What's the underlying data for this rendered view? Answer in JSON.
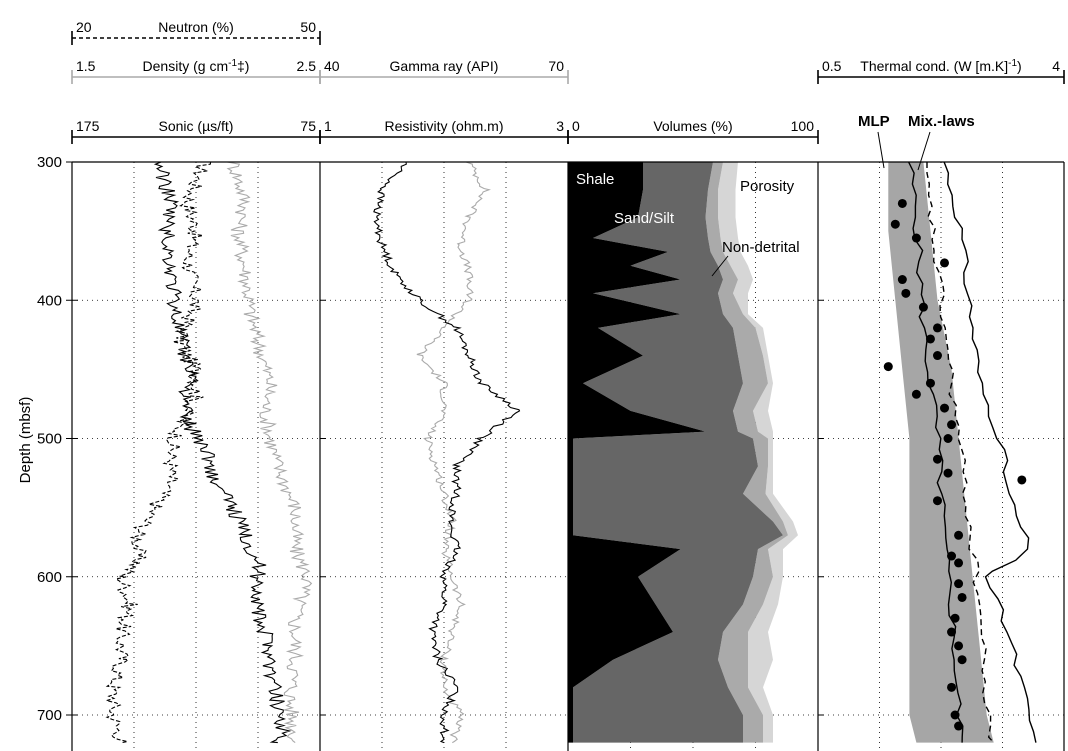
{
  "chart_data": {
    "type": "line",
    "ylabel": "Depth (mbsf)",
    "yrange": [
      300,
      720
    ],
    "yticks": [
      300,
      400,
      500,
      600,
      700
    ],
    "tracks": [
      {
        "id": "t1",
        "scales": [
          {
            "label": "Neutron (%)",
            "min_label": "20",
            "max_label": "50",
            "style": "dashed",
            "color": "#000000"
          },
          {
            "label_pre": "Density (g cm",
            "label_sup": "-1",
            "label_post": "‡)",
            "min_label": "1.5",
            "max_label": "2.5",
            "style": "solid",
            "color": "#aaaaaa"
          },
          {
            "label": "Sonic (µs/ft)",
            "min_label": "175",
            "max_label": "75",
            "style": "solid",
            "color": "#000000"
          }
        ],
        "series": [
          {
            "curve": "neutron",
            "style": "dashed",
            "color": "#000000",
            "points": [
              [
                300,
                36
              ],
              [
                330,
                34
              ],
              [
                350,
                35
              ],
              [
                370,
                34
              ],
              [
                400,
                35
              ],
              [
                430,
                33
              ],
              [
                450,
                35
              ],
              [
                470,
                35
              ],
              [
                490,
                33
              ],
              [
                510,
                32
              ],
              [
                530,
                32
              ],
              [
                550,
                30
              ],
              [
                570,
                28
              ],
              [
                590,
                28
              ],
              [
                600,
                26
              ],
              [
                620,
                27
              ],
              [
                640,
                26
              ],
              [
                660,
                26
              ],
              [
                680,
                25
              ],
              [
                700,
                25
              ],
              [
                720,
                26
              ]
            ]
          },
          {
            "curve": "density",
            "style": "solid",
            "color": "#aaaaaa",
            "points": [
              [
                300,
                2.15
              ],
              [
                330,
                2.2
              ],
              [
                350,
                2.17
              ],
              [
                380,
                2.2
              ],
              [
                410,
                2.22
              ],
              [
                430,
                2.25
              ],
              [
                460,
                2.3
              ],
              [
                480,
                2.28
              ],
              [
                500,
                2.3
              ],
              [
                520,
                2.33
              ],
              [
                550,
                2.4
              ],
              [
                580,
                2.4
              ],
              [
                600,
                2.45
              ],
              [
                630,
                2.4
              ],
              [
                660,
                2.4
              ],
              [
                690,
                2.38
              ],
              [
                720,
                2.4
              ]
            ]
          },
          {
            "curve": "sonic",
            "style": "solid",
            "color": "#000000",
            "points": [
              [
                300,
                140
              ],
              [
                330,
                135
              ],
              [
                350,
                137
              ],
              [
                380,
                135
              ],
              [
                410,
                133
              ],
              [
                440,
                130
              ],
              [
                455,
                125
              ],
              [
                470,
                130
              ],
              [
                490,
                128
              ],
              [
                510,
                120
              ],
              [
                530,
                118
              ],
              [
                550,
                110
              ],
              [
                570,
                105
              ],
              [
                590,
                100
              ],
              [
                610,
                100
              ],
              [
                630,
                100
              ],
              [
                650,
                95
              ],
              [
                670,
                95
              ],
              [
                690,
                92
              ],
              [
                710,
                90
              ],
              [
                720,
                92
              ]
            ]
          }
        ]
      },
      {
        "id": "t2",
        "scales": [
          {
            "label": "Gamma ray (API)",
            "min_label": "40",
            "max_label": "70",
            "style": "solid",
            "color": "#aaaaaa"
          },
          {
            "label": "Resistivity (ohm.m)",
            "min_label": "1",
            "max_label": "3",
            "style": "solid",
            "color": "#000000"
          }
        ],
        "series": [
          {
            "curve": "gamma",
            "style": "solid",
            "color": "#aaaaaa",
            "points": [
              [
                300,
                58
              ],
              [
                320,
                60
              ],
              [
                340,
                58
              ],
              [
                360,
                57
              ],
              [
                380,
                58
              ],
              [
                400,
                58
              ],
              [
                420,
                55
              ],
              [
                440,
                52
              ],
              [
                460,
                55
              ],
              [
                480,
                55
              ],
              [
                500,
                53
              ],
              [
                520,
                54
              ],
              [
                540,
                55
              ],
              [
                560,
                56
              ],
              [
                580,
                55
              ],
              [
                600,
                56
              ],
              [
                620,
                57
              ],
              [
                640,
                56
              ],
              [
                660,
                55
              ],
              [
                680,
                55
              ],
              [
                700,
                57
              ],
              [
                720,
                56
              ]
            ]
          },
          {
            "curve": "resistivity",
            "style": "solid",
            "color": "#000000",
            "points": [
              [
                300,
                1.7
              ],
              [
                320,
                1.5
              ],
              [
                340,
                1.45
              ],
              [
                360,
                1.5
              ],
              [
                380,
                1.6
              ],
              [
                400,
                1.8
              ],
              [
                420,
                2.1
              ],
              [
                440,
                2.2
              ],
              [
                460,
                2.3
              ],
              [
                480,
                2.6
              ],
              [
                500,
                2.3
              ],
              [
                520,
                2.1
              ],
              [
                540,
                2.1
              ],
              [
                560,
                2.05
              ],
              [
                580,
                2.1
              ],
              [
                600,
                2.0
              ],
              [
                620,
                2.0
              ],
              [
                640,
                1.9
              ],
              [
                660,
                1.95
              ],
              [
                680,
                2.1
              ],
              [
                700,
                2.0
              ],
              [
                720,
                2.0
              ]
            ]
          }
        ]
      },
      {
        "id": "t3",
        "type": "area",
        "scales": [
          {
            "label": "Volumes (%)",
            "min_label": "0",
            "max_label": "100",
            "style": "solid",
            "color": "#000000"
          }
        ],
        "areas": [
          {
            "name": "Shale",
            "color": "#000000"
          },
          {
            "name": "Sand/Silt",
            "color": "#666666"
          },
          {
            "name": "Non-detrital",
            "color": "#aaaaaa"
          },
          {
            "name": "Porosity",
            "color": "#d6d6d6"
          }
        ],
        "depths": [
          300,
          320,
          340,
          355,
          365,
          375,
          385,
          395,
          410,
          420,
          440,
          460,
          480,
          495,
          500,
          520,
          540,
          560,
          570,
          580,
          600,
          620,
          640,
          660,
          680,
          700,
          720
        ],
        "shale": [
          30,
          30,
          28,
          10,
          40,
          25,
          45,
          10,
          45,
          12,
          30,
          6,
          25,
          55,
          2,
          2,
          2,
          2,
          2,
          45,
          28,
          35,
          42,
          18,
          2,
          2,
          2
        ],
        "sand": [
          58,
          56,
          55,
          56,
          57,
          60,
          62,
          60,
          62,
          66,
          68,
          70,
          66,
          68,
          74,
          76,
          70,
          82,
          86,
          76,
          74,
          70,
          62,
          60,
          64,
          70,
          70
        ],
        "nondetrital": [
          62,
          60,
          60,
          61,
          62,
          65,
          68,
          66,
          70,
          75,
          78,
          80,
          74,
          76,
          80,
          80,
          79,
          86,
          88,
          80,
          82,
          78,
          72,
          72,
          72,
          78,
          78
        ],
        "porosity_edge": [
          68,
          67,
          67,
          68,
          69,
          72,
          74,
          72,
          72,
          78,
          80,
          82,
          80,
          82,
          82,
          82,
          82,
          90,
          92,
          86,
          86,
          84,
          80,
          82,
          78,
          82,
          82
        ]
      },
      {
        "id": "t4",
        "scales": [
          {
            "label_pre": "Thermal cond. (W [m.K]",
            "label_sup": "-1",
            "label_post": ")",
            "min_label": "0.5",
            "max_label": "4",
            "style": "solid",
            "color": "#000000"
          }
        ],
        "annotations": [
          "MLP",
          "Mix.-laws"
        ],
        "band": {
          "color": "#a6a6a6",
          "edges": [
            [
              300,
              1.5,
              2.0
            ],
            [
              350,
              1.5,
              2.1
            ],
            [
              400,
              1.6,
              2.2
            ],
            [
              450,
              1.7,
              2.4
            ],
            [
              500,
              1.8,
              2.5
            ],
            [
              550,
              1.8,
              2.6
            ],
            [
              600,
              1.8,
              2.7
            ],
            [
              650,
              1.8,
              2.8
            ],
            [
              700,
              1.8,
              2.9
            ],
            [
              720,
              1.9,
              3.0
            ]
          ]
        },
        "series": [
          {
            "curve": "mlp",
            "style": "solid",
            "color": "#000000",
            "points": [
              [
                300,
                1.8
              ],
              [
                340,
                1.9
              ],
              [
                380,
                1.95
              ],
              [
                420,
                2.0
              ],
              [
                460,
                2.1
              ],
              [
                500,
                2.2
              ],
              [
                540,
                2.25
              ],
              [
                580,
                2.3
              ],
              [
                620,
                2.4
              ],
              [
                660,
                2.45
              ],
              [
                700,
                2.5
              ],
              [
                720,
                2.55
              ]
            ]
          },
          {
            "curve": "mix_dashed",
            "style": "dashed",
            "color": "#000000",
            "points": [
              [
                300,
                2.0
              ],
              [
                340,
                2.1
              ],
              [
                380,
                2.2
              ],
              [
                420,
                2.3
              ],
              [
                460,
                2.4
              ],
              [
                500,
                2.5
              ],
              [
                540,
                2.6
              ],
              [
                580,
                2.7
              ],
              [
                620,
                2.8
              ],
              [
                660,
                2.85
              ],
              [
                700,
                2.9
              ],
              [
                720,
                3.0
              ]
            ]
          },
          {
            "curve": "mix_solid",
            "style": "solid",
            "color": "#000000",
            "points": [
              [
                300,
                2.3
              ],
              [
                340,
                2.5
              ],
              [
                380,
                2.6
              ],
              [
                420,
                2.7
              ],
              [
                460,
                2.8
              ],
              [
                500,
                3.1
              ],
              [
                540,
                3.2
              ],
              [
                580,
                3.5
              ],
              [
                600,
                2.9
              ],
              [
                640,
                3.2
              ],
              [
                680,
                3.4
              ],
              [
                720,
                3.6
              ]
            ]
          }
        ],
        "dots": [
          [
            330,
            1.7
          ],
          [
            345,
            1.6
          ],
          [
            355,
            1.9
          ],
          [
            373,
            2.3
          ],
          [
            385,
            1.7
          ],
          [
            395,
            1.75
          ],
          [
            405,
            2.0
          ],
          [
            420,
            2.2
          ],
          [
            428,
            2.1
          ],
          [
            440,
            2.2
          ],
          [
            448,
            1.5
          ],
          [
            460,
            2.1
          ],
          [
            468,
            1.9
          ],
          [
            478,
            2.3
          ],
          [
            490,
            2.4
          ],
          [
            500,
            2.35
          ],
          [
            515,
            2.2
          ],
          [
            525,
            2.35
          ],
          [
            530,
            3.4
          ],
          [
            545,
            2.2
          ],
          [
            570,
            2.5
          ],
          [
            585,
            2.4
          ],
          [
            590,
            2.5
          ],
          [
            605,
            2.5
          ],
          [
            615,
            2.55
          ],
          [
            630,
            2.45
          ],
          [
            640,
            2.4
          ],
          [
            650,
            2.5
          ],
          [
            660,
            2.55
          ],
          [
            680,
            2.4
          ],
          [
            700,
            2.45
          ],
          [
            708,
            2.5
          ]
        ]
      }
    ]
  }
}
